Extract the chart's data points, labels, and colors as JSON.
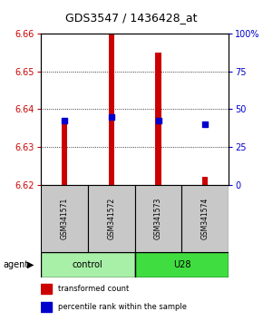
{
  "title": "GDS3547 / 1436428_at",
  "samples": [
    "GSM341571",
    "GSM341572",
    "GSM341573",
    "GSM341574"
  ],
  "group_labels": [
    "control",
    "U28"
  ],
  "bar_bottom": 6.62,
  "bar_tops": [
    6.637,
    6.66,
    6.655,
    6.622
  ],
  "percentile_values": [
    6.637,
    6.638,
    6.637,
    6.636
  ],
  "ylim_left": [
    6.62,
    6.66
  ],
  "ylim_right": [
    0,
    100
  ],
  "yticks_left": [
    6.62,
    6.63,
    6.64,
    6.65,
    6.66
  ],
  "yticks_right": [
    0,
    25,
    50,
    75,
    100
  ],
  "bar_color": "#CC0000",
  "dot_color": "#0000CC",
  "bar_width": 0.12,
  "left_tick_color": "#CC0000",
  "right_tick_color": "#0000CC",
  "legend_red_label": "transformed count",
  "legend_blue_label": "percentile rank within the sample",
  "agent_label": "agent",
  "sample_box_color": "#C8C8C8",
  "control_fill": "#A8F0A8",
  "u28_fill": "#40DD40",
  "title_fontsize": 9,
  "tick_labelsize": 7
}
